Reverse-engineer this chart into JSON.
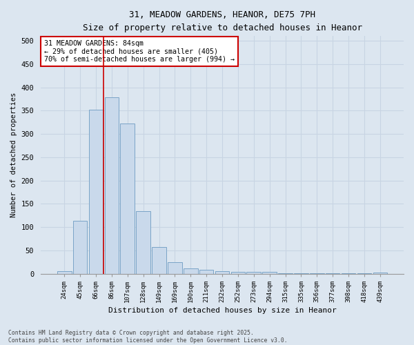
{
  "title_line1": "31, MEADOW GARDENS, HEANOR, DE75 7PH",
  "title_line2": "Size of property relative to detached houses in Heanor",
  "xlabel": "Distribution of detached houses by size in Heanor",
  "ylabel": "Number of detached properties",
  "bar_labels": [
    "24sqm",
    "45sqm",
    "66sqm",
    "86sqm",
    "107sqm",
    "128sqm",
    "149sqm",
    "169sqm",
    "190sqm",
    "211sqm",
    "232sqm",
    "252sqm",
    "273sqm",
    "294sqm",
    "315sqm",
    "335sqm",
    "356sqm",
    "377sqm",
    "398sqm",
    "418sqm",
    "439sqm"
  ],
  "bar_values": [
    5,
    113,
    352,
    378,
    323,
    135,
    57,
    25,
    11,
    9,
    5,
    4,
    4,
    4,
    1,
    1,
    1,
    1,
    1,
    1,
    2
  ],
  "bar_color": "#c9d9eb",
  "bar_edge_color": "#7aa4c7",
  "grid_color": "#c8d4e3",
  "background_color": "#dce6f0",
  "vline_bar_index": 3,
  "vline_color": "#cc0000",
  "annotation_text": "31 MEADOW GARDENS: 84sqm\n← 29% of detached houses are smaller (405)\n70% of semi-detached houses are larger (994) →",
  "annotation_box_color": "#ffffff",
  "annotation_box_edge": "#cc0000",
  "ylim": [
    0,
    510
  ],
  "yticks": [
    0,
    50,
    100,
    150,
    200,
    250,
    300,
    350,
    400,
    450,
    500
  ],
  "footer_line1": "Contains HM Land Registry data © Crown copyright and database right 2025.",
  "footer_line2": "Contains public sector information licensed under the Open Government Licence v3.0."
}
